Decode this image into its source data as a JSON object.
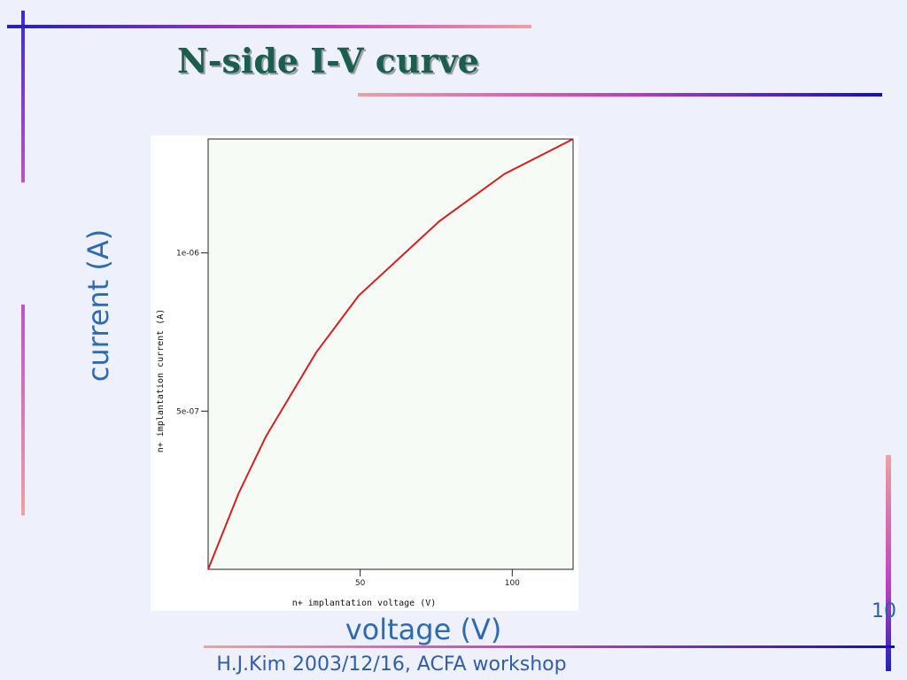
{
  "slide": {
    "title": "N-side I-V curve",
    "y_label": "current (A)",
    "x_label": "voltage (V)",
    "footer": "H.J.Kim 2003/12/16,  ACFA workshop",
    "page_number": "10"
  },
  "chart_data": {
    "type": "line",
    "x_label": "n+ implantation voltage (V)",
    "y_label": "n+ implantation current (A)",
    "x": [
      0,
      10,
      19,
      35.5,
      49.5,
      76,
      97.5,
      120
    ],
    "series": [
      {
        "color": "#d42020",
        "values": [
          0,
          2.4e-07,
          4.2e-07,
          6.85e-07,
          8.65e-07,
          1.1e-06,
          1.25e-06,
          1.36e-06
        ]
      }
    ],
    "xlim": [
      0,
      120
    ],
    "ylim": [
      0,
      1.36e-06
    ],
    "xticks": [
      50,
      100
    ],
    "yticks": [
      {
        "value": 5e-07,
        "label": "5e-07"
      },
      {
        "value": 1e-06,
        "label": "1e-06"
      }
    ]
  }
}
